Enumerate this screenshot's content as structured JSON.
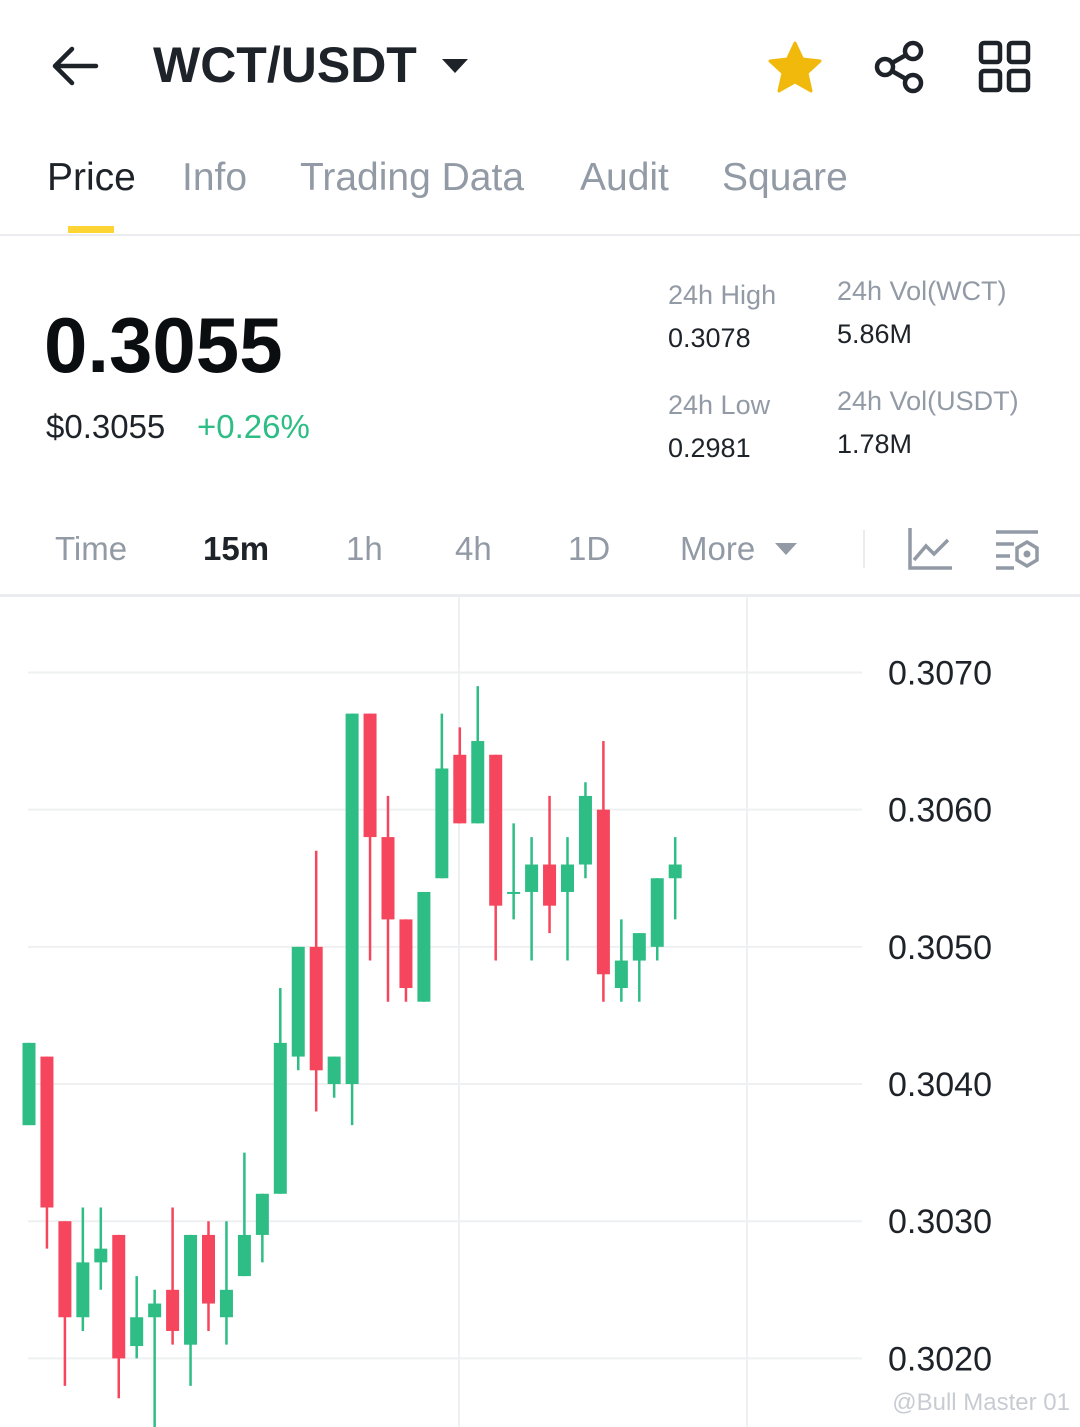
{
  "header": {
    "title": "WCT/USDT"
  },
  "tabs": [
    "Price",
    "Info",
    "Trading Data",
    "Audit",
    "Square"
  ],
  "ticker": {
    "price": "0.3055",
    "fiat_price": "$0.3055",
    "change": "+0.26%"
  },
  "stats": [
    {
      "label": "24h High",
      "value": "0.3078"
    },
    {
      "label": "24h Vol(WCT)",
      "value": "5.86M"
    },
    {
      "label": "24h Low",
      "value": "0.2981"
    },
    {
      "label": "24h Vol(USDT)",
      "value": "1.78M"
    }
  ],
  "intervals": [
    "Time",
    "15m",
    "1h",
    "4h",
    "1D",
    "More"
  ],
  "watermark": "@Bull Master 01",
  "chart_data": {
    "type": "candlestick",
    "ylim": [
      0.3015,
      0.30755
    ],
    "yticks": [
      {
        "value": 0.307,
        "label": "0.3070"
      },
      {
        "value": 0.306,
        "label": "0.3060"
      },
      {
        "value": 0.305,
        "label": "0.3050"
      },
      {
        "value": 0.304,
        "label": "0.3040"
      },
      {
        "value": 0.303,
        "label": "0.3030"
      },
      {
        "value": 0.302,
        "label": "0.3020"
      }
    ],
    "grid": true,
    "up_color": "#2ebd85",
    "down_color": "#f6465d",
    "open": [
      0.3037,
      0.3042,
      0.303,
      0.3023,
      0.3027,
      0.3029,
      0.30209,
      0.3023,
      0.3025,
      0.3021,
      0.3029,
      0.3023,
      0.3026,
      0.3029,
      0.3032,
      0.3042,
      0.305,
      0.304,
      0.304,
      0.3067,
      0.3058,
      0.3052,
      0.3046,
      0.3055,
      0.3064,
      0.3059,
      0.3064,
      0.3054,
      0.3054,
      0.3056,
      0.3054,
      0.3056,
      0.306,
      0.3047,
      0.3049,
      0.305,
      0.3055
    ],
    "high": [
      0.3043,
      0.3042,
      0.303,
      0.3031,
      0.3031,
      0.3029,
      0.3026,
      0.3025,
      0.3031,
      0.3029,
      0.303,
      0.303,
      0.3035,
      0.3032,
      0.3047,
      0.305,
      0.3057,
      0.3042,
      0.3067,
      0.3067,
      0.3061,
      0.3052,
      0.3054,
      0.3067,
      0.3066,
      0.3069,
      0.3064,
      0.3059,
      0.3058,
      0.3061,
      0.3058,
      0.3062,
      0.3065,
      0.3052,
      0.3051,
      0.3055,
      0.3058
    ],
    "low": [
      0.3037,
      0.3028,
      0.3018,
      0.3022,
      0.3025,
      0.30171,
      0.302,
      0.3015,
      0.3021,
      0.3018,
      0.3022,
      0.3021,
      0.3026,
      0.3027,
      0.3032,
      0.3041,
      0.3038,
      0.3039,
      0.3037,
      0.3049,
      0.3046,
      0.3046,
      0.3046,
      0.3055,
      0.3059,
      0.3059,
      0.3049,
      0.3052,
      0.3049,
      0.3051,
      0.3049,
      0.3055,
      0.3046,
      0.3046,
      0.3046,
      0.3049,
      0.3052
    ],
    "close": [
      0.3043,
      0.3031,
      0.3023,
      0.3027,
      0.3028,
      0.302,
      0.3023,
      0.3024,
      0.3022,
      0.3029,
      0.3024,
      0.3025,
      0.3029,
      0.3032,
      0.3043,
      0.305,
      0.3041,
      0.3042,
      0.3067,
      0.3058,
      0.3052,
      0.3047,
      0.3054,
      0.3063,
      0.3059,
      0.3065,
      0.3053,
      0.3054,
      0.3056,
      0.3053,
      0.3056,
      0.3061,
      0.3048,
      0.3049,
      0.3051,
      0.3055,
      0.3056
    ]
  }
}
